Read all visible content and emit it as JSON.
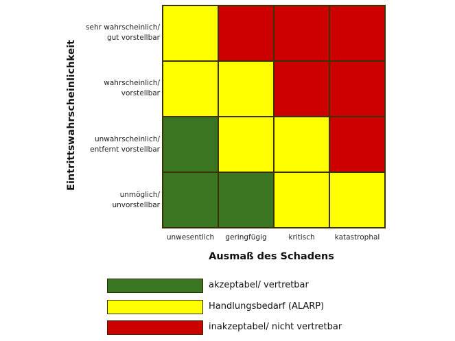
{
  "chart_data": {
    "type": "heatmap",
    "title": "",
    "xlabel": "Ausmaß des Schadens",
    "ylabel": "Eintrittswahrscheinlichkeit",
    "x_categories": [
      "unwesentlich",
      "geringfügig",
      "kritisch",
      "katastrophal"
    ],
    "y_categories_top_to_bottom": [
      "sehr wahrscheinlich/ gut vorstellbar",
      "wahrscheinlich/ vorstellbar",
      "unwahrscheinlich/ entfernt vorstellbar",
      "unmöglich/ unvorstellbar"
    ],
    "matrix_top_to_bottom": [
      [
        "ALARP",
        "inakzeptabel",
        "inakzeptabel",
        "inakzeptabel"
      ],
      [
        "ALARP",
        "ALARP",
        "inakzeptabel",
        "inakzeptabel"
      ],
      [
        "akzeptabel",
        "ALARP",
        "ALARP",
        "inakzeptabel"
      ],
      [
        "akzeptabel",
        "akzeptabel",
        "ALARP",
        "ALARP"
      ]
    ],
    "legend": [
      {
        "key": "akzeptabel",
        "label": "akzeptabel/ vertretbar",
        "color": "#3a7523"
      },
      {
        "key": "ALARP",
        "label": "Handlungsbedarf (ALARP)",
        "color": "#ffff00"
      },
      {
        "key": "inakzeptabel",
        "label": "inakzeptabel/ nicht vertretbar",
        "color": "#cc0000"
      }
    ],
    "legend_position": "bottom"
  },
  "axis": {
    "y_title": "Eintrittswahrscheinlichkeit",
    "x_title": "Ausmaß des Schadens",
    "y_labels": [
      {
        "line1": "sehr wahrscheinlich/",
        "line2": "gut vorstellbar"
      },
      {
        "line1": "wahrscheinlich/",
        "line2": "vorstellbar"
      },
      {
        "line1": "unwahrscheinlich/",
        "line2": "entfernt vorstellbar"
      },
      {
        "line1": "unmöglich/",
        "line2": "unvorstellbar"
      }
    ],
    "x_labels": [
      "unwesentlich",
      "geringfügig",
      "kritisch",
      "katastrophal"
    ]
  },
  "colors": {
    "akzeptabel": "#3a7523",
    "ALARP": "#ffff00",
    "inakzeptabel": "#cc0000"
  },
  "legend": [
    {
      "label": "akzeptabel/ vertretbar",
      "color": "#3a7523"
    },
    {
      "label": "Handlungsbedarf (ALARP)",
      "color": "#ffff00"
    },
    {
      "label": "inakzeptabel/ nicht vertretbar",
      "color": "#cc0000"
    }
  ]
}
